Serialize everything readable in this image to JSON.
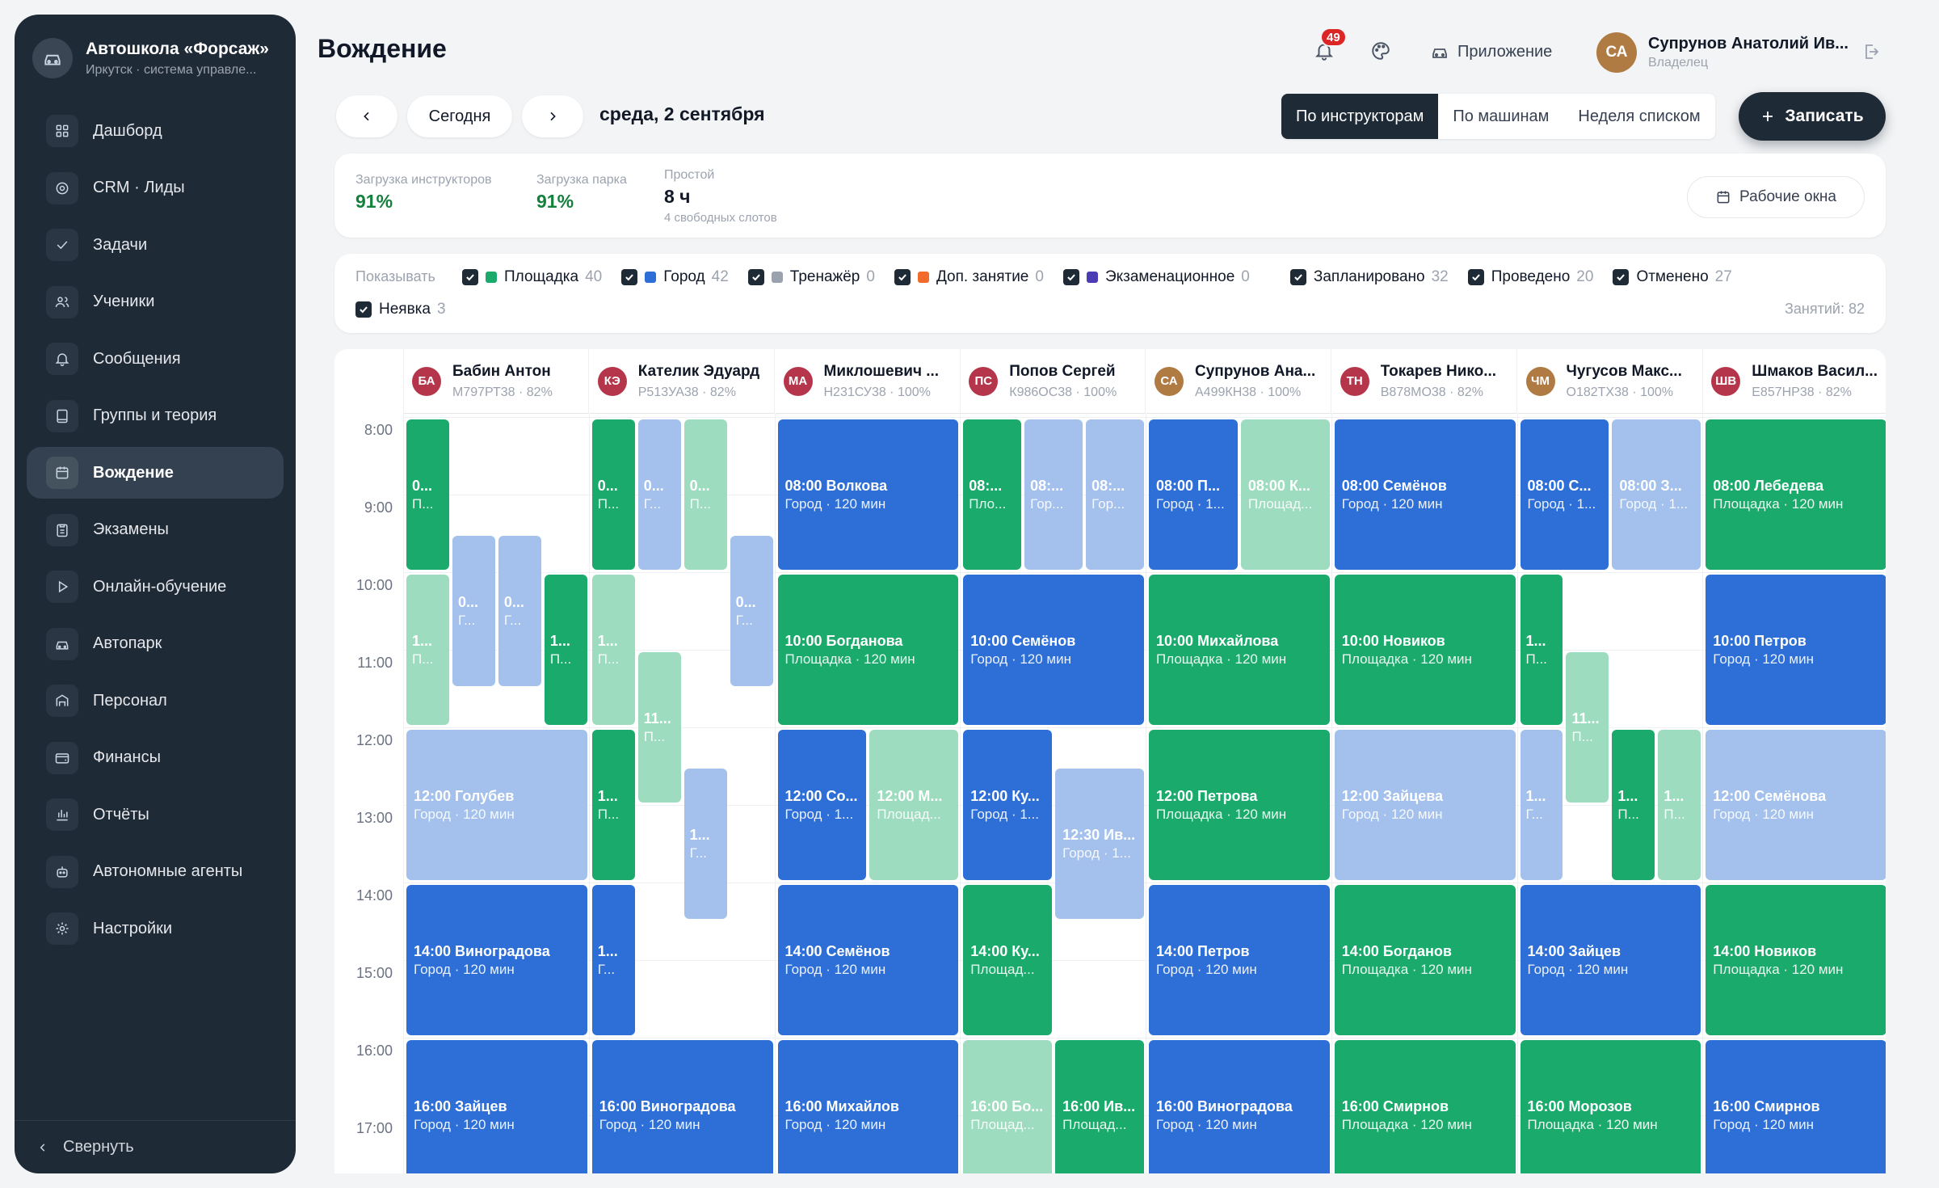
{
  "brand": {
    "name": "Автошкола «Форсаж»",
    "subtitle": "Иркутск · система управле..."
  },
  "nav": [
    {
      "label": "Дашборд",
      "icon": "grid-icon"
    },
    {
      "label": "CRM · Лиды",
      "icon": "target-icon"
    },
    {
      "label": "Задачи",
      "icon": "check-icon"
    },
    {
      "label": "Ученики",
      "icon": "users-icon"
    },
    {
      "label": "Сообщения",
      "icon": "bell-icon"
    },
    {
      "label": "Группы и теория",
      "icon": "book-icon"
    },
    {
      "label": "Вождение",
      "icon": "calendar-icon",
      "active": true
    },
    {
      "label": "Экзамены",
      "icon": "clipboard-icon"
    },
    {
      "label": "Онлайн-обучение",
      "icon": "play-icon"
    },
    {
      "label": "Автопарк",
      "icon": "car-icon"
    },
    {
      "label": "Персонал",
      "icon": "id-badge-icon"
    },
    {
      "label": "Финансы",
      "icon": "wallet-icon"
    },
    {
      "label": "Отчёты",
      "icon": "bar-chart-icon"
    },
    {
      "label": "Автономные агенты",
      "icon": "robot-icon"
    },
    {
      "label": "Настройки",
      "icon": "gear-icon"
    }
  ],
  "collapse_label": "Свернуть",
  "header": {
    "title": "Вождение",
    "notifications": "49",
    "app_label": "Приложение",
    "user": {
      "initials": "СА",
      "name": "Супрунов Анатолий Ив...",
      "role": "Владелец"
    }
  },
  "toolbar": {
    "today": "Сегодня",
    "date": "среда, 2 сентября",
    "views": [
      "По инструкторам",
      "По машинам",
      "Неделя списком"
    ],
    "book": "Записать"
  },
  "stats": {
    "instructors_label": "Загрузка инструкторов",
    "instructors_value": "91%",
    "fleet_label": "Загрузка парка",
    "fleet_value": "91%",
    "idle_label": "Простой",
    "idle_value": "8 ч",
    "idle_sub": "4 свободных слотов",
    "windows_btn": "Рабочие окна"
  },
  "filters": {
    "show_label": "Показывать",
    "items": [
      {
        "label": "Площадка",
        "count": "40",
        "color": "#1aaa6b"
      },
      {
        "label": "Город",
        "count": "42",
        "color": "#2d6fd6"
      },
      {
        "label": "Тренажёр",
        "count": "0",
        "color": "#9aa3ad"
      },
      {
        "label": "Доп. занятие",
        "count": "0",
        "color": "#f26b2b"
      },
      {
        "label": "Экзаменационное",
        "count": "0",
        "color": "#4b3bb5"
      },
      {
        "label": "Запланировано",
        "count": "32"
      },
      {
        "label": "Проведено",
        "count": "20"
      },
      {
        "label": "Отменено",
        "count": "27"
      }
    ],
    "noshow": {
      "label": "Неявка",
      "count": "3"
    },
    "total": "Занятий: 82"
  },
  "times": [
    "8:00",
    "9:00",
    "10:00",
    "11:00",
    "12:00",
    "13:00",
    "14:00",
    "15:00",
    "16:00",
    "17:00"
  ],
  "instructors": [
    {
      "initials": "БА",
      "name": "Бабин Антон",
      "sub": "М797РТ38 · 82%",
      "color": "#b5364b"
    },
    {
      "initials": "КЭ",
      "name": "Кателик Эдуард",
      "sub": "Р513УА38 · 82%",
      "color": "#b5364b"
    },
    {
      "initials": "МА",
      "name": "Миклошевич ...",
      "sub": "Н231СУ38 · 100%",
      "color": "#b5364b"
    },
    {
      "initials": "ПС",
      "name": "Попов Сергей",
      "sub": "К986ОС38 · 100%",
      "color": "#b5364b"
    },
    {
      "initials": "СА",
      "name": "Супрунов Ана...",
      "sub": "А499КН38 · 100%",
      "color": "#b07a43"
    },
    {
      "initials": "ТН",
      "name": "Токарев Нико...",
      "sub": "В878МО38 · 82%",
      "color": "#b5364b"
    },
    {
      "initials": "ЧМ",
      "name": "Чугусов Макс...",
      "sub": "О182ТХ38 · 100%",
      "color": "#b07a43"
    },
    {
      "initials": "ШВ",
      "name": "Шмаков Васил...",
      "sub": "Е857НР38 · 82%",
      "color": "#b5364b"
    }
  ],
  "colors": {
    "yard": "#1aaa6b",
    "city": "#2d6fd6",
    "yard_light": "#9edcbf",
    "city_light": "#a3c1ec"
  },
  "events": [
    {
      "col": 0,
      "sub": 0,
      "n": 4,
      "start": 8,
      "dur": 2,
      "kind": "yard",
      "t": "0...",
      "s": "П..."
    },
    {
      "col": 0,
      "sub": 1,
      "n": 4,
      "start": 9.5,
      "dur": 2,
      "kind": "city_light",
      "t": "0...",
      "s": "Г..."
    },
    {
      "col": 0,
      "sub": 2,
      "n": 4,
      "start": 9.5,
      "dur": 2,
      "kind": "city_light",
      "t": "0...",
      "s": "Г..."
    },
    {
      "col": 0,
      "sub": 0,
      "n": 4,
      "start": 10,
      "dur": 2,
      "kind": "yard_light",
      "t": "1...",
      "s": "П..."
    },
    {
      "col": 0,
      "sub": 3,
      "n": 4,
      "start": 10,
      "dur": 2,
      "kind": "yard",
      "t": "1...",
      "s": "П..."
    },
    {
      "col": 0,
      "sub": 0,
      "n": 1,
      "start": 12,
      "dur": 2,
      "kind": "city_light",
      "t": "12:00 Голубев",
      "s": "Город · 120 мин"
    },
    {
      "col": 0,
      "sub": 0,
      "n": 1,
      "start": 14,
      "dur": 2,
      "kind": "city",
      "t": "14:00 Виноградова",
      "s": "Город · 120 мин"
    },
    {
      "col": 0,
      "sub": 0,
      "n": 1,
      "start": 16,
      "dur": 2,
      "kind": "city",
      "t": "16:00 Зайцев",
      "s": "Город · 120 мин"
    },
    {
      "col": 1,
      "sub": 0,
      "n": 4,
      "start": 8,
      "dur": 2,
      "kind": "yard",
      "t": "0...",
      "s": "П..."
    },
    {
      "col": 1,
      "sub": 1,
      "n": 4,
      "start": 8,
      "dur": 2,
      "kind": "city_light",
      "t": "0...",
      "s": "Г..."
    },
    {
      "col": 1,
      "sub": 2,
      "n": 4,
      "start": 8,
      "dur": 2,
      "kind": "yard_light",
      "t": "0...",
      "s": "П..."
    },
    {
      "col": 1,
      "sub": 3,
      "n": 4,
      "start": 9.5,
      "dur": 2,
      "kind": "city_light",
      "t": "0...",
      "s": "Г..."
    },
    {
      "col": 1,
      "sub": 0,
      "n": 4,
      "start": 10,
      "dur": 2,
      "kind": "yard_light",
      "t": "1...",
      "s": "П..."
    },
    {
      "col": 1,
      "sub": 1,
      "n": 4,
      "start": 11,
      "dur": 2,
      "kind": "yard_light",
      "t": "11...",
      "s": "П..."
    },
    {
      "col": 1,
      "sub": 0,
      "n": 4,
      "start": 12,
      "dur": 2,
      "kind": "yard",
      "t": "1...",
      "s": "П..."
    },
    {
      "col": 1,
      "sub": 2,
      "n": 4,
      "start": 12.5,
      "dur": 2,
      "kind": "city_light",
      "t": "1...",
      "s": "Г..."
    },
    {
      "col": 1,
      "sub": 0,
      "n": 4,
      "start": 14,
      "dur": 2,
      "kind": "city",
      "t": "1...",
      "s": "Г..."
    },
    {
      "col": 1,
      "sub": 0,
      "n": 1,
      "start": 16,
      "dur": 2,
      "kind": "city",
      "t": "16:00 Виноградова",
      "s": "Город · 120 мин"
    },
    {
      "col": 2,
      "sub": 0,
      "n": 1,
      "start": 8,
      "dur": 2,
      "kind": "city",
      "t": "08:00 Волкова",
      "s": "Город · 120 мин"
    },
    {
      "col": 2,
      "sub": 0,
      "n": 1,
      "start": 10,
      "dur": 2,
      "kind": "yard",
      "t": "10:00 Богданова",
      "s": "Площадка · 120 мин"
    },
    {
      "col": 2,
      "sub": 0,
      "n": 2,
      "start": 12,
      "dur": 2,
      "kind": "city",
      "t": "12:00 Со...",
      "s": "Город · 1..."
    },
    {
      "col": 2,
      "sub": 1,
      "n": 2,
      "start": 12,
      "dur": 2,
      "kind": "yard_light",
      "t": "12:00 М...",
      "s": "Площад..."
    },
    {
      "col": 2,
      "sub": 0,
      "n": 1,
      "start": 14,
      "dur": 2,
      "kind": "city",
      "t": "14:00 Семёнов",
      "s": "Город · 120 мин"
    },
    {
      "col": 2,
      "sub": 0,
      "n": 1,
      "start": 16,
      "dur": 2,
      "kind": "city",
      "t": "16:00 Михайлов",
      "s": "Город · 120 мин"
    },
    {
      "col": 3,
      "sub": 0,
      "n": 3,
      "start": 8,
      "dur": 2,
      "kind": "yard",
      "t": "08:...",
      "s": "Пло..."
    },
    {
      "col": 3,
      "sub": 1,
      "n": 3,
      "start": 8,
      "dur": 2,
      "kind": "city_light",
      "t": "08:...",
      "s": "Гор..."
    },
    {
      "col": 3,
      "sub": 2,
      "n": 3,
      "start": 8,
      "dur": 2,
      "kind": "city_light",
      "t": "08:...",
      "s": "Гор..."
    },
    {
      "col": 3,
      "sub": 0,
      "n": 1,
      "start": 10,
      "dur": 2,
      "kind": "city",
      "t": "10:00 Семёнов",
      "s": "Город · 120 мин"
    },
    {
      "col": 3,
      "sub": 0,
      "n": 2,
      "start": 12,
      "dur": 2,
      "kind": "city",
      "t": "12:00 Ку...",
      "s": "Город · 1..."
    },
    {
      "col": 3,
      "sub": 1,
      "n": 2,
      "start": 12.5,
      "dur": 2,
      "kind": "city_light",
      "t": "12:30 Ив...",
      "s": "Город · 1..."
    },
    {
      "col": 3,
      "sub": 0,
      "n": 2,
      "start": 14,
      "dur": 2,
      "kind": "yard",
      "t": "14:00 Ку...",
      "s": "Площад..."
    },
    {
      "col": 3,
      "sub": 0,
      "n": 2,
      "start": 16,
      "dur": 2,
      "kind": "yard_light",
      "t": "16:00 Бо...",
      "s": "Площад..."
    },
    {
      "col": 3,
      "sub": 1,
      "n": 2,
      "start": 16,
      "dur": 2,
      "kind": "yard",
      "t": "16:00 Ив...",
      "s": "Площад..."
    },
    {
      "col": 4,
      "sub": 0,
      "n": 2,
      "start": 8,
      "dur": 2,
      "kind": "city",
      "t": "08:00 П...",
      "s": "Город · 1..."
    },
    {
      "col": 4,
      "sub": 1,
      "n": 2,
      "start": 8,
      "dur": 2,
      "kind": "yard_light",
      "t": "08:00 К...",
      "s": "Площад..."
    },
    {
      "col": 4,
      "sub": 0,
      "n": 1,
      "start": 10,
      "dur": 2,
      "kind": "yard",
      "t": "10:00 Михайлова",
      "s": "Площадка · 120 мин"
    },
    {
      "col": 4,
      "sub": 0,
      "n": 1,
      "start": 12,
      "dur": 2,
      "kind": "yard",
      "t": "12:00 Петрова",
      "s": "Площадка · 120 мин"
    },
    {
      "col": 4,
      "sub": 0,
      "n": 1,
      "start": 14,
      "dur": 2,
      "kind": "city",
      "t": "14:00 Петров",
      "s": "Город · 120 мин"
    },
    {
      "col": 4,
      "sub": 0,
      "n": 1,
      "start": 16,
      "dur": 2,
      "kind": "city",
      "t": "16:00 Виноградова",
      "s": "Город · 120 мин"
    },
    {
      "col": 5,
      "sub": 0,
      "n": 1,
      "start": 8,
      "dur": 2,
      "kind": "city",
      "t": "08:00 Семёнов",
      "s": "Город · 120 мин"
    },
    {
      "col": 5,
      "sub": 0,
      "n": 1,
      "start": 10,
      "dur": 2,
      "kind": "yard",
      "t": "10:00 Новиков",
      "s": "Площадка · 120 мин"
    },
    {
      "col": 5,
      "sub": 0,
      "n": 1,
      "start": 12,
      "dur": 2,
      "kind": "city_light",
      "t": "12:00 Зайцева",
      "s": "Город · 120 мин"
    },
    {
      "col": 5,
      "sub": 0,
      "n": 1,
      "start": 14,
      "dur": 2,
      "kind": "yard",
      "t": "14:00 Богданов",
      "s": "Площадка · 120 мин"
    },
    {
      "col": 5,
      "sub": 0,
      "n": 1,
      "start": 16,
      "dur": 2,
      "kind": "yard",
      "t": "16:00 Смирнов",
      "s": "Площадка · 120 мин"
    },
    {
      "col": 6,
      "sub": 0,
      "n": 2,
      "start": 8,
      "dur": 2,
      "kind": "city",
      "t": "08:00 С...",
      "s": "Город · 1..."
    },
    {
      "col": 6,
      "sub": 1,
      "n": 2,
      "start": 8,
      "dur": 2,
      "kind": "city_light",
      "t": "08:00 З...",
      "s": "Город · 1..."
    },
    {
      "col": 6,
      "sub": 0,
      "n": 4,
      "start": 10,
      "dur": 2,
      "kind": "yard",
      "t": "1...",
      "s": "П..."
    },
    {
      "col": 6,
      "sub": 1,
      "n": 4,
      "start": 11,
      "dur": 2,
      "kind": "yard_light",
      "t": "11...",
      "s": "П..."
    },
    {
      "col": 6,
      "sub": 0,
      "n": 4,
      "start": 12,
      "dur": 2,
      "kind": "city_light",
      "t": "1...",
      "s": "Г..."
    },
    {
      "col": 6,
      "sub": 2,
      "n": 4,
      "start": 12,
      "dur": 2,
      "kind": "yard",
      "t": "1...",
      "s": "П..."
    },
    {
      "col": 6,
      "sub": 3,
      "n": 4,
      "start": 12,
      "dur": 2,
      "kind": "yard_light",
      "t": "1...",
      "s": "П..."
    },
    {
      "col": 6,
      "sub": 0,
      "n": 1,
      "start": 14,
      "dur": 2,
      "kind": "city",
      "t": "14:00 Зайцев",
      "s": "Город · 120 мин"
    },
    {
      "col": 6,
      "sub": 0,
      "n": 1,
      "start": 16,
      "dur": 2,
      "kind": "yard",
      "t": "16:00 Морозов",
      "s": "Площадка · 120 мин"
    },
    {
      "col": 7,
      "sub": 0,
      "n": 1,
      "start": 8,
      "dur": 2,
      "kind": "yard",
      "t": "08:00 Лебедева",
      "s": "Площадка · 120 мин"
    },
    {
      "col": 7,
      "sub": 0,
      "n": 1,
      "start": 10,
      "dur": 2,
      "kind": "city",
      "t": "10:00 Петров",
      "s": "Город · 120 мин"
    },
    {
      "col": 7,
      "sub": 0,
      "n": 1,
      "start": 12,
      "dur": 2,
      "kind": "city_light",
      "t": "12:00 Семёнова",
      "s": "Город · 120 мин"
    },
    {
      "col": 7,
      "sub": 0,
      "n": 1,
      "start": 14,
      "dur": 2,
      "kind": "yard",
      "t": "14:00 Новиков",
      "s": "Площадка · 120 мин"
    },
    {
      "col": 7,
      "sub": 0,
      "n": 1,
      "start": 16,
      "dur": 2,
      "kind": "city",
      "t": "16:00 Смирнов",
      "s": "Город · 120 мин"
    }
  ]
}
